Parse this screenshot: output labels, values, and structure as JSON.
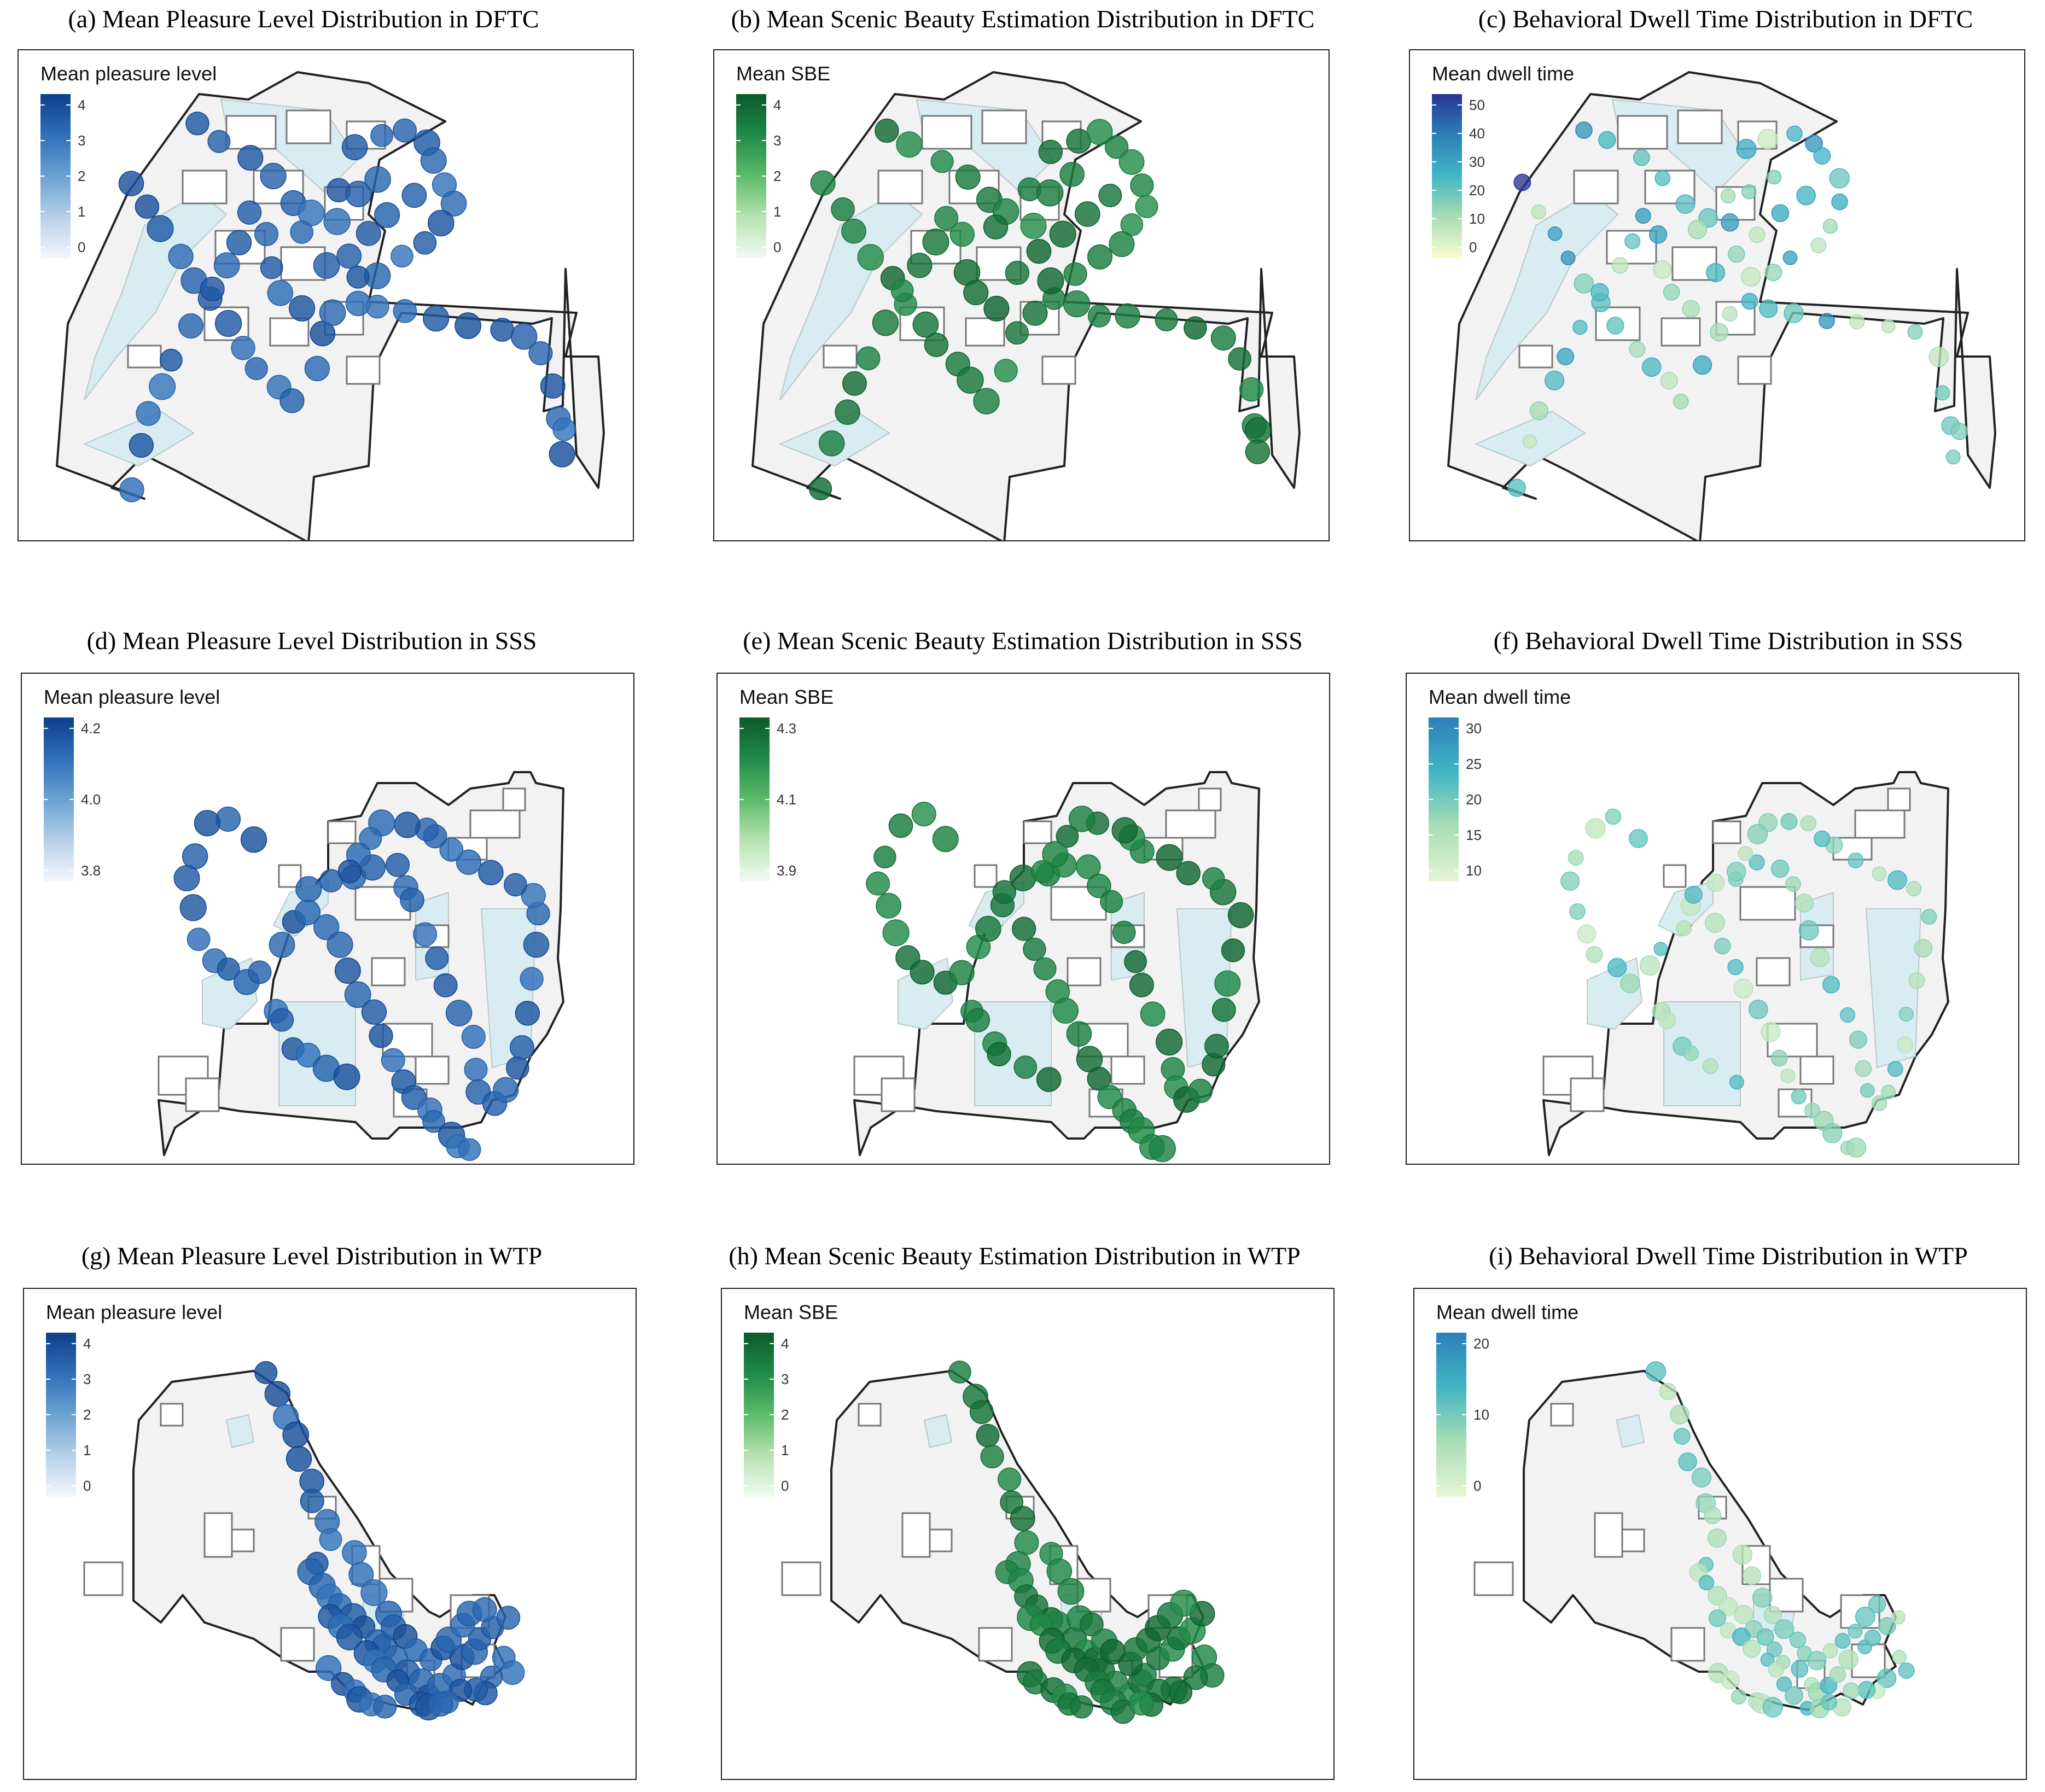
{
  "colors": {
    "blue_ramp": [
      "#f4f6fd",
      "#b6d0e8",
      "#6aa2d2",
      "#2f6fb8",
      "#0d3f8a"
    ],
    "green_ramp": [
      "#f1faf1",
      "#b6e2b1",
      "#5dbb6a",
      "#208a48",
      "#0b5a2a"
    ],
    "dwell_ramp": [
      "#fbfbd0",
      "#a9ddb3",
      "#41b6c4",
      "#2c7fb8",
      "#253494"
    ],
    "dwell_ramp_sss": [
      "#e6f5d6",
      "#a9ddb3",
      "#41b6c4",
      "#2c7fb8"
    ],
    "map_fill": "#e8e8e8",
    "water": "#d8ecf2",
    "building": "#ffffff",
    "outline": "#222222"
  },
  "panels": [
    {
      "title": "(a) Mean Pleasure Level Distribution in DFTC",
      "legend": {
        "title": "Mean pleasure level",
        "ticks": [
          "4",
          "3",
          "2",
          "1",
          "0"
        ],
        "ramp": "blue_ramp"
      },
      "site": "DFTC",
      "metric": "pleasure"
    },
    {
      "title": "(b) Mean Scenic Beauty Estimation Distribution in DFTC",
      "legend": {
        "title": "Mean SBE",
        "ticks": [
          "4",
          "3",
          "2",
          "1",
          "0"
        ],
        "ramp": "green_ramp"
      },
      "site": "DFTC",
      "metric": "sbe"
    },
    {
      "title": "(c) Behavioral Dwell Time Distribution in DFTC",
      "legend": {
        "title": "Mean dwell time",
        "ticks": [
          "50",
          "40",
          "30",
          "20",
          "10",
          "0"
        ],
        "ramp": "dwell_ramp"
      },
      "site": "DFTC",
      "metric": "dwell"
    },
    {
      "title": "(d) Mean Pleasure Level Distribution in SSS",
      "legend": {
        "title": "Mean pleasure level",
        "ticks": [
          "4.2",
          "4.0",
          "3.8"
        ],
        "ramp": "blue_ramp"
      },
      "site": "SSS",
      "metric": "pleasure"
    },
    {
      "title": "(e) Mean Scenic Beauty Estimation Distribution in SSS",
      "legend": {
        "title": "Mean SBE",
        "ticks": [
          "4.3",
          "4.1",
          "3.9"
        ],
        "ramp": "green_ramp"
      },
      "site": "SSS",
      "metric": "sbe"
    },
    {
      "title": "(f) Behavioral Dwell Time Distribution in SSS",
      "legend": {
        "title": "Mean dwell time",
        "ticks": [
          "30",
          "25",
          "20",
          "15",
          "10"
        ],
        "ramp": "dwell_ramp_sss"
      },
      "site": "SSS",
      "metric": "dwell"
    },
    {
      "title": "(g) Mean Pleasure Level Distribution in WTP",
      "legend": {
        "title": "Mean pleasure level",
        "ticks": [
          "4",
          "3",
          "2",
          "1",
          "0"
        ],
        "ramp": "blue_ramp"
      },
      "site": "WTP",
      "metric": "pleasure"
    },
    {
      "title": "(h) Mean Scenic Beauty Estimation Distribution in WTP",
      "legend": {
        "title": "Mean SBE",
        "ticks": [
          "4",
          "3",
          "2",
          "1",
          "0"
        ],
        "ramp": "green_ramp"
      },
      "site": "WTP",
      "metric": "sbe"
    },
    {
      "title": "(i) Behavioral Dwell Time Distribution in WTP",
      "legend": {
        "title": "Mean dwell time",
        "ticks": [
          "20",
          "10",
          "0"
        ],
        "ramp": "dwell_ramp_sss"
      },
      "site": "WTP",
      "metric": "dwell"
    }
  ]
}
